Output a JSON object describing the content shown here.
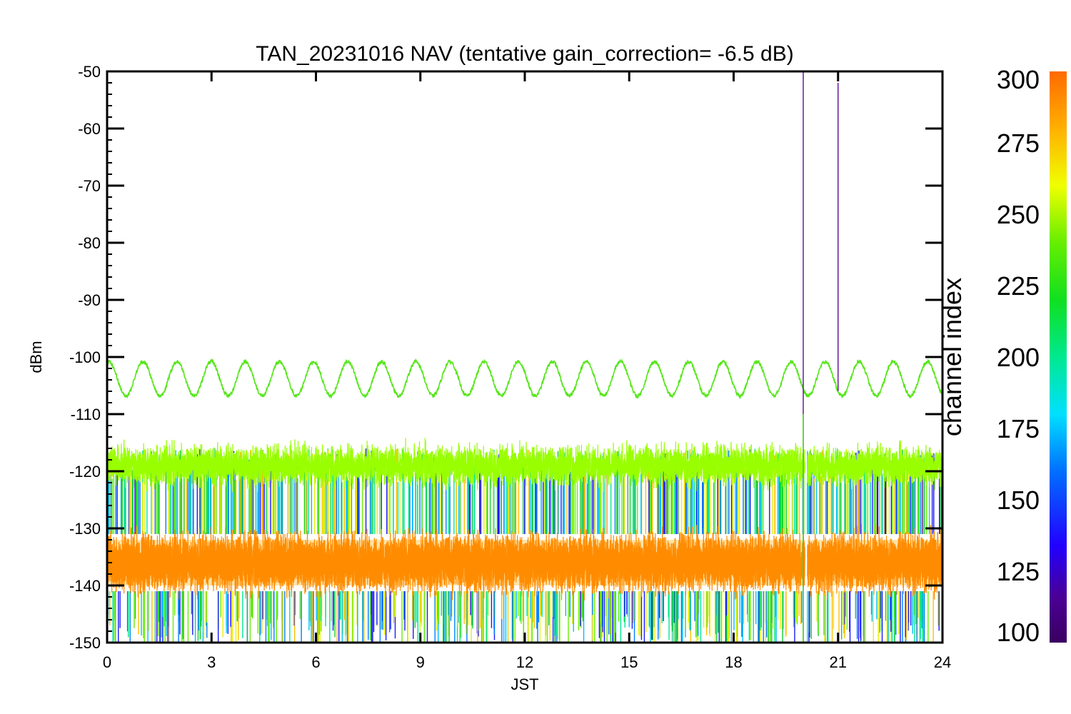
{
  "chart_data": {
    "type": "line",
    "title": "TAN_20231016 NAV (tentative gain_correction= -6.5 dB)",
    "xlabel": "JST",
    "ylabel": "dBm",
    "xlim": [
      0,
      24
    ],
    "ylim": [
      -150,
      -50
    ],
    "x_ticks": [
      "0",
      "3",
      "6",
      "9",
      "12",
      "15",
      "18",
      "21",
      "24"
    ],
    "y_ticks": [
      "-50",
      "-60",
      "-70",
      "-80",
      "-90",
      "-100",
      "-110",
      "-120",
      "-130",
      "-140",
      "-150"
    ],
    "grid": false,
    "colorbar": {
      "label": "channel index",
      "range": [
        100,
        300
      ],
      "ticks": [
        "300",
        "275",
        "250",
        "225",
        "200",
        "175",
        "150",
        "125",
        "100"
      ],
      "colormap": "rainbow"
    },
    "series": [
      {
        "channel": 245,
        "color": "#55e61a",
        "pattern": "sinusoid",
        "mean_dBm": -103.8,
        "amplitude_dB": 3.0,
        "period_h": 0.98,
        "peak_at_h": 0.05
      },
      {
        "channel": 265,
        "color": "#99ff00",
        "pattern": "noise band",
        "band_dBm": [
          -124,
          -114
        ],
        "center_dBm": -119
      },
      {
        "channel": 290,
        "color": "#ff8c00",
        "pattern": "noise band",
        "band_dBm": [
          -143,
          -129
        ],
        "center_dBm": -136
      },
      {
        "channel_range": [
          120,
          285
        ],
        "pattern": "noise spikes",
        "band_dBm": [
          -152,
          -122
        ]
      }
    ],
    "data_gap_h": [
      20.05,
      20.12
    ],
    "vertical_lines": [
      {
        "x": 20.0,
        "y_range": [
          -150,
          -50
        ],
        "color": "#6a1b9a"
      },
      {
        "x": 20.0,
        "y_range": [
          -150,
          -110
        ],
        "color": "#55e61a"
      },
      {
        "x": 21.0,
        "y_range": [
          -106,
          -52
        ],
        "color": "#6a1b9a"
      }
    ]
  }
}
